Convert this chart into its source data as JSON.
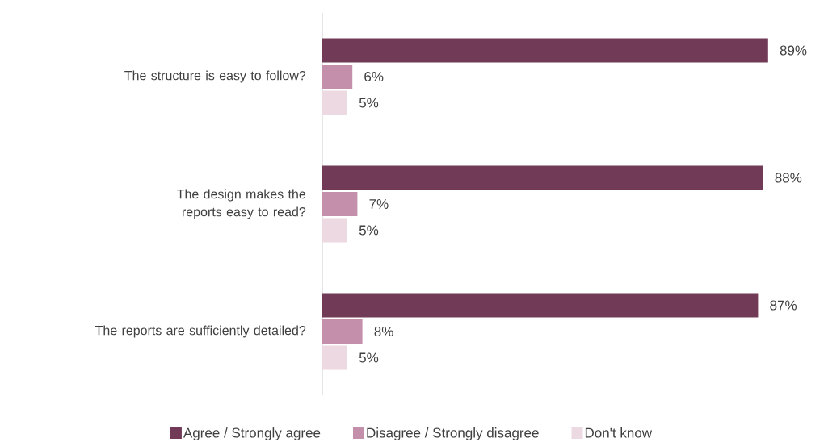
{
  "chart_data": {
    "type": "bar",
    "orientation": "horizontal",
    "legend": "bottom",
    "categories": [
      "The structure is easy to follow?",
      "The design makes the reports easy to read?",
      "The reports are sufficiently detailed?"
    ],
    "series": [
      {
        "name": "Agree / Strongly agree",
        "color": "#713b57",
        "values": [
          89,
          88,
          87
        ],
        "value_labels": [
          "89%",
          "88%",
          "87%"
        ]
      },
      {
        "name": "Disagree / Strongly disagree",
        "color": "#c48fab",
        "values": [
          6,
          7,
          8
        ],
        "value_labels": [
          "6%",
          "7%",
          "8%"
        ]
      },
      {
        "name": "Don't know",
        "color": "#ecd9e1",
        "values": [
          5,
          5,
          5
        ],
        "value_labels": [
          "5%",
          "5%",
          "5%"
        ]
      }
    ]
  }
}
